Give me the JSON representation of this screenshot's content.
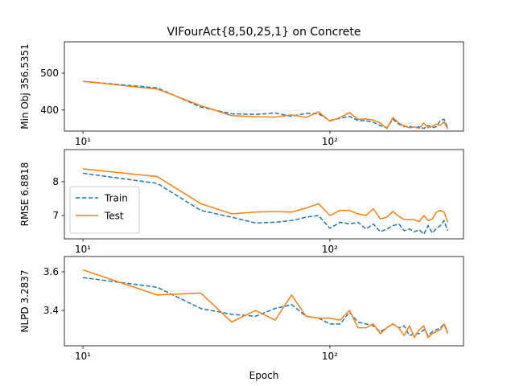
{
  "chart_data": [
    {
      "type": "line",
      "title": "VIFourAct{8,50,25,1} on Concrete",
      "ylabel": "Min Obj 356.5351",
      "log_x": true,
      "x": [
        10,
        20,
        30,
        40,
        50,
        60,
        70,
        80,
        90,
        100,
        110,
        120,
        130,
        140,
        150,
        160,
        170,
        180,
        190,
        200,
        210,
        220,
        230,
        240,
        250,
        260,
        270,
        280,
        290,
        300
      ],
      "xlim": [
        8.41,
        347.6
      ],
      "xticks": [
        {
          "value": 10,
          "label": "10¹"
        },
        {
          "value": 100,
          "label": "10²"
        }
      ],
      "ylim": [
        343,
        585
      ],
      "yticks": [
        400,
        500
      ],
      "series": [
        {
          "name": "Train",
          "color": "#1f77b4",
          "linestyle": "dashed",
          "values": [
            478,
            460,
            408,
            390,
            388,
            392,
            383,
            391,
            390,
            372,
            378,
            383,
            372,
            371,
            367,
            358,
            352,
            375,
            362,
            355,
            356,
            352,
            355,
            350,
            358,
            352,
            355,
            372,
            375,
            352
          ]
        },
        {
          "name": "Test",
          "color": "#ff7f0e",
          "linestyle": "solid",
          "values": [
            478,
            457,
            412,
            385,
            382,
            381,
            387,
            380,
            395,
            370,
            380,
            393,
            375,
            376,
            373,
            365,
            350,
            380,
            365,
            357,
            352,
            354,
            350,
            365,
            352,
            356,
            362,
            358,
            368,
            348
          ]
        }
      ]
    },
    {
      "type": "line",
      "ylabel": "RMSE 6.8818",
      "log_x": true,
      "legend": "lower left",
      "x": [
        10,
        20,
        30,
        40,
        50,
        60,
        70,
        80,
        90,
        100,
        110,
        120,
        130,
        140,
        150,
        160,
        170,
        180,
        190,
        200,
        210,
        220,
        230,
        240,
        250,
        260,
        270,
        280,
        290,
        300
      ],
      "xlim": [
        8.41,
        347.6
      ],
      "xticks": [
        {
          "value": 10,
          "label": "10¹"
        },
        {
          "value": 100,
          "label": "10²"
        }
      ],
      "ylim": [
        6.31,
        8.95
      ],
      "yticks": [
        7,
        8
      ],
      "series": [
        {
          "name": "Train",
          "color": "#1f77b4",
          "linestyle": "dashed",
          "values": [
            8.25,
            7.95,
            7.15,
            6.95,
            6.78,
            6.8,
            6.85,
            6.95,
            7.0,
            6.62,
            6.8,
            6.75,
            6.8,
            6.6,
            6.75,
            6.52,
            6.6,
            6.7,
            6.75,
            6.55,
            6.6,
            6.52,
            6.58,
            6.45,
            6.7,
            6.48,
            6.62,
            6.7,
            6.85,
            6.55
          ]
        },
        {
          "name": "Test",
          "color": "#ff7f0e",
          "linestyle": "solid",
          "values": [
            8.38,
            8.15,
            7.35,
            7.05,
            7.1,
            7.12,
            7.1,
            7.22,
            7.35,
            7.0,
            7.15,
            7.15,
            7.05,
            7.0,
            7.2,
            6.9,
            6.95,
            7.12,
            6.98,
            6.88,
            6.88,
            6.88,
            6.82,
            7.0,
            6.85,
            6.9,
            7.1,
            7.15,
            7.1,
            6.8
          ]
        }
      ]
    },
    {
      "type": "line",
      "ylabel": "NLPD 3.2837",
      "xlabel": "Epoch",
      "log_x": true,
      "x": [
        10,
        20,
        30,
        40,
        50,
        60,
        70,
        80,
        90,
        100,
        110,
        120,
        130,
        140,
        150,
        160,
        170,
        180,
        190,
        200,
        210,
        220,
        230,
        240,
        250,
        260,
        270,
        280,
        290,
        300
      ],
      "xlim": [
        8.41,
        347.6
      ],
      "xticks": [
        {
          "value": 10,
          "label": "10¹"
        },
        {
          "value": 100,
          "label": "10²"
        }
      ],
      "ylim": [
        3.217,
        3.679
      ],
      "yticks": [
        3.4,
        3.6
      ],
      "series": [
        {
          "name": "Train",
          "color": "#1f77b4",
          "linestyle": "dashed",
          "values": [
            3.57,
            3.52,
            3.41,
            3.38,
            3.37,
            3.41,
            3.43,
            3.37,
            3.36,
            3.33,
            3.33,
            3.39,
            3.34,
            3.33,
            3.32,
            3.29,
            3.31,
            3.33,
            3.31,
            3.32,
            3.27,
            3.28,
            3.28,
            3.3,
            3.27,
            3.29,
            3.3,
            3.31,
            3.33,
            3.29
          ]
        },
        {
          "name": "Test",
          "color": "#ff7f0e",
          "linestyle": "solid",
          "values": [
            3.61,
            3.48,
            3.49,
            3.34,
            3.4,
            3.35,
            3.48,
            3.37,
            3.36,
            3.36,
            3.35,
            3.4,
            3.31,
            3.31,
            3.33,
            3.28,
            3.31,
            3.33,
            3.31,
            3.27,
            3.32,
            3.26,
            3.3,
            3.32,
            3.26,
            3.28,
            3.29,
            3.3,
            3.33,
            3.28
          ]
        }
      ]
    }
  ]
}
